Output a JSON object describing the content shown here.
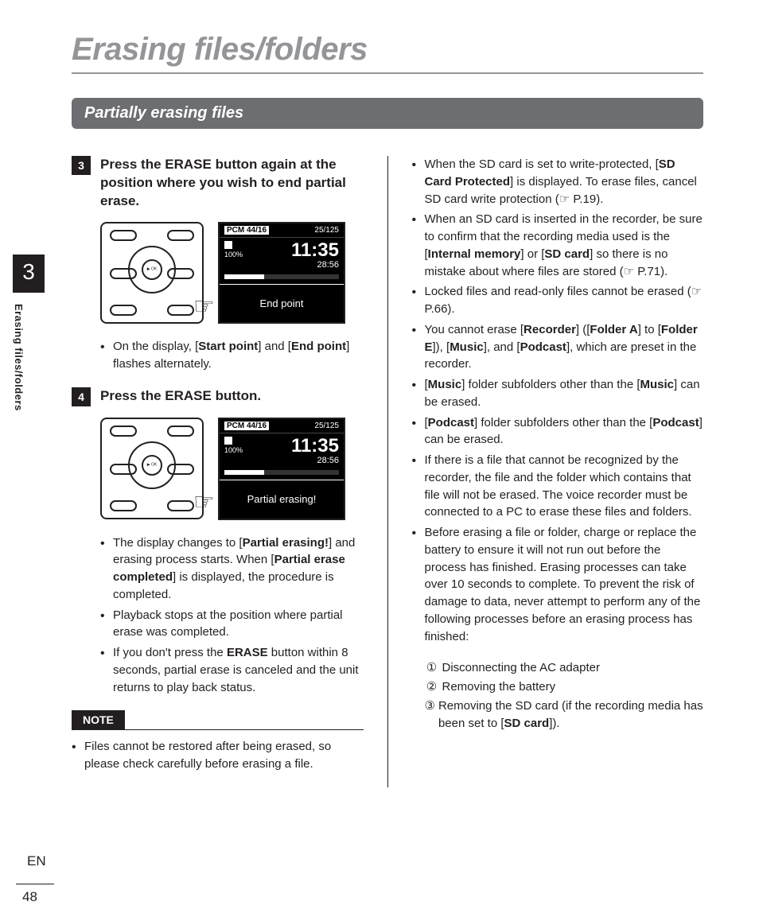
{
  "page": {
    "title": "Erasing files/folders",
    "section": "Partially erasing files",
    "chapter_number": "3",
    "side_label": "Erasing files/folders",
    "lang": "EN",
    "page_number": "48"
  },
  "step3": {
    "num": "3",
    "heading_html": "Press the <b>ERASE</b> button again at the position where you wish to end partial erase.",
    "lcd": {
      "format": "PCM 44/16",
      "counter": "25/125",
      "time": "11:35",
      "duration": "28:56",
      "battery": "100%",
      "status_text": "End point"
    },
    "bullets": [
      "On the display, [<b>Start point</b>] and [<b>End point</b>] flashes alternately."
    ]
  },
  "step4": {
    "num": "4",
    "heading_html": "Press the <b>ERASE</b> button.",
    "lcd": {
      "format": "PCM 44/16",
      "counter": "25/125",
      "time": "11:35",
      "duration": "28:56",
      "battery": "100%",
      "status_text": "Partial erasing!"
    },
    "bullets": [
      "The display changes to [<b>Partial erasing!</b>] and erasing process starts. When [<b>Partial erase completed</b>] is displayed, the procedure is completed.",
      "Playback stops at the position where partial erase was completed.",
      "If you don't press the <b>ERASE</b> button within 8 seconds, partial erase is canceled and the unit returns to play back status."
    ]
  },
  "note": {
    "label": "NOTE",
    "bullets": [
      "Files cannot be restored after being erased, so please check carefully before erasing a file."
    ]
  },
  "right_bullets": [
    "When the SD card is set to write-protected, [<b>SD Card Protected</b>] is displayed. To erase files, cancel SD card write protection (☞ P.19).",
    "When an SD card is inserted in the recorder, be sure to confirm that the recording media used is the [<b>Internal memory</b>] or [<b>SD card</b>] so there is no mistake about where files are stored (☞ P.71).",
    "Locked files and read-only files cannot be erased (☞ P.66).",
    "You cannot erase [<b>Recorder</b>] ([<b>Folder A</b>] to [<b>Folder E</b>]), [<b>Music</b>], and [<b>Podcast</b>], which are preset in the recorder.",
    "[<b>Music</b>] folder subfolders other than the [<b>Music</b>] can be erased.",
    "[<b>Podcast</b>] folder subfolders other than the [<b>Podcast</b>] can be erased.",
    "If there is a file that cannot be recognized by the recorder, the file and the folder which contains that file will not be erased. The voice recorder must be connected to a PC to erase these files and folders.",
    "Before erasing a file or folder, charge or replace the battery to ensure it will not run out before the process has finished. Erasing processes can take over 10 seconds to complete. To prevent the risk of damage to data, never attempt to perform any of the following processes before an erasing process has finished:"
  ],
  "right_sub": [
    {
      "n": "①",
      "t": "Disconnecting the AC adapter"
    },
    {
      "n": "②",
      "t": "Removing the battery"
    },
    {
      "n": "③",
      "t": "Removing the SD card (if the recording media has been set to [<b>SD card</b>])."
    }
  ],
  "device": {
    "ok_label": "▶\nOK"
  }
}
